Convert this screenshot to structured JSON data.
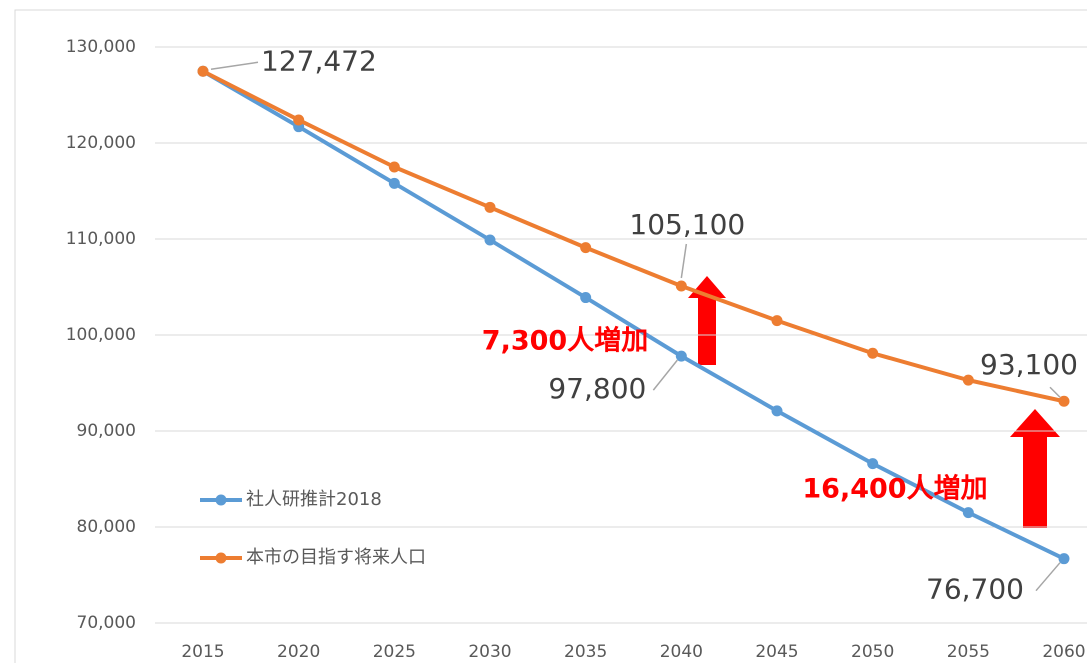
{
  "chart_data": {
    "type": "line",
    "x": [
      2015,
      2020,
      2025,
      2030,
      2035,
      2040,
      2045,
      2050,
      2055,
      2060
    ],
    "xlim": [
      2015,
      2060
    ],
    "xticks": [
      2015,
      2020,
      2025,
      2030,
      2035,
      2040,
      2045,
      2050,
      2055,
      2060
    ],
    "ylim": [
      70000,
      130000
    ],
    "yticks": [
      {
        "value": 70000,
        "label": "70,000"
      },
      {
        "value": 80000,
        "label": "80,000"
      },
      {
        "value": 90000,
        "label": "90,000"
      },
      {
        "value": 100000,
        "label": "100,000"
      },
      {
        "value": 110000,
        "label": "110,000"
      },
      {
        "value": 120000,
        "label": "120,000"
      },
      {
        "value": 130000,
        "label": "130,000"
      }
    ],
    "grid": true,
    "legend": "lower left",
    "series": [
      {
        "name": "社人研推計2018",
        "color": "#5b9bd5",
        "values": [
          127472,
          121700,
          115800,
          109900,
          103900,
          97800,
          92100,
          86600,
          81500,
          76700
        ],
        "value_labels": [
          "127,472",
          null,
          null,
          null,
          null,
          "97,800",
          null,
          null,
          null,
          "76,700"
        ]
      },
      {
        "name": "本市の目指す将来人口",
        "color": "#ed7d31",
        "values": [
          127472,
          122400,
          117500,
          113300,
          109100,
          105100,
          101500,
          98100,
          95300,
          93100
        ],
        "value_labels": [
          null,
          null,
          null,
          null,
          null,
          "105,100",
          null,
          null,
          null,
          "93,100"
        ]
      }
    ],
    "annotations": [
      "7,300人増加",
      "16,400人増加"
    ]
  }
}
